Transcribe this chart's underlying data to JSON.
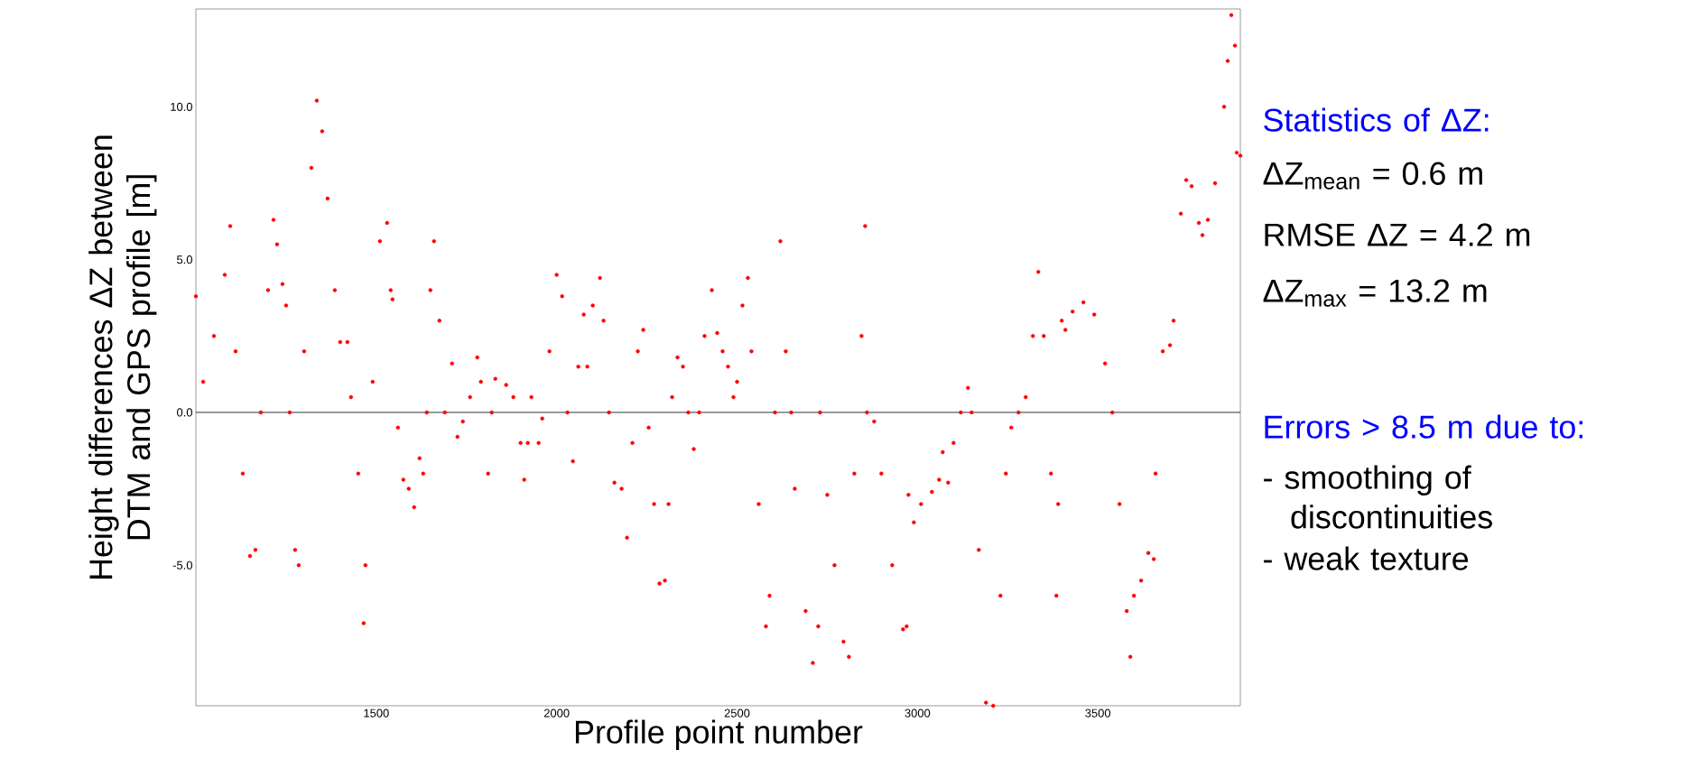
{
  "chart_data": {
    "type": "scatter",
    "xlabel": "Profile point number",
    "ylabel": "Height differences ΔZ between DTM and GPS profile [m]",
    "color": "#ff0000",
    "xlim": [
      1000,
      3895
    ],
    "ylim": [
      -9.6,
      13.2
    ],
    "xticks": [
      1500,
      2000,
      2500,
      3000,
      3500
    ],
    "yticks": [
      {
        "value": -5,
        "label": "-5.0"
      },
      {
        "value": 0,
        "label": "0.0"
      },
      {
        "value": 5,
        "label": "5.0"
      },
      {
        "value": 10,
        "label": "10.0"
      }
    ],
    "ref_lines": [
      {
        "axis": "y",
        "value": 0,
        "color": "#000000"
      }
    ],
    "annotations": [
      "Statistics of ΔZ:",
      "ΔZ$_{mean}$ = 0.6 m",
      "RMSE ΔZ = 4.2 m",
      "ΔZ$_{max}$ = 13.2 m",
      "Errors > 8.5 m due to:",
      "- smoothing of discontinuities",
      "- weak texture"
    ],
    "x": [
      1000,
      1020,
      1050,
      1080,
      1095,
      1110,
      1130,
      1150,
      1165,
      1180,
      1200,
      1215,
      1225,
      1240,
      1250,
      1260,
      1275,
      1285,
      1300,
      1320,
      1335,
      1350,
      1365,
      1385,
      1400,
      1420,
      1430,
      1450,
      1465,
      1470,
      1490,
      1510,
      1530,
      1540,
      1545,
      1560,
      1575,
      1590,
      1605,
      1620,
      1630,
      1640,
      1650,
      1660,
      1675,
      1690,
      1710,
      1725,
      1740,
      1760,
      1780,
      1790,
      1810,
      1820,
      1830,
      1860,
      1880,
      1900,
      1910,
      1920,
      1930,
      1950,
      1960,
      1980,
      2000,
      2015,
      2030,
      2045,
      2060,
      2075,
      2085,
      2100,
      2120,
      2130,
      2145,
      2160,
      2180,
      2195,
      2210,
      2225,
      2240,
      2255,
      2270,
      2285,
      2300,
      2310,
      2320,
      2335,
      2350,
      2365,
      2380,
      2395,
      2410,
      2430,
      2445,
      2460,
      2475,
      2490,
      2500,
      2515,
      2530,
      2540,
      2560,
      2580,
      2590,
      2605,
      2620,
      2635,
      2650,
      2660,
      2690,
      2710,
      2725,
      2730,
      2750,
      2770,
      2795,
      2810,
      2825,
      2845,
      2855,
      2860,
      2880,
      2900,
      2930,
      2960,
      2970,
      2975,
      2990,
      3010,
      3040,
      3060,
      3070,
      3085,
      3100,
      3120,
      3140,
      3150,
      3170,
      3190,
      3210,
      3230,
      3245,
      3260,
      3280,
      3300,
      3320,
      3335,
      3350,
      3370,
      3385,
      3390,
      3400,
      3410,
      3430,
      3460,
      3490,
      3520,
      3540,
      3560,
      3580,
      3590,
      3600,
      3620,
      3640,
      3655,
      3660,
      3680,
      3700,
      3710,
      3730,
      3745,
      3760,
      3780,
      3790,
      3805,
      3825,
      3850,
      3860,
      3870,
      3880,
      3885,
      3895
    ],
    "values": [
      3.8,
      1.0,
      2.5,
      4.5,
      6.1,
      2,
      -2,
      -4.7,
      -4.5,
      0,
      4,
      6.3,
      5.5,
      4.2,
      3.5,
      0,
      -4.5,
      -5.0,
      2,
      8,
      10.2,
      9.2,
      7,
      4,
      2.3,
      2.3,
      0.5,
      -2,
      -6.9,
      -5,
      1,
      5.6,
      6.2,
      4,
      3.7,
      -0.5,
      -2.2,
      -2.5,
      -3.1,
      -1.5,
      -2,
      0,
      4,
      5.6,
      3,
      0,
      1.6,
      -0.8,
      -0.3,
      0.5,
      1.8,
      1,
      -2,
      0,
      1.1,
      0.9,
      0.5,
      -1,
      -2.2,
      -1,
      0.5,
      -1,
      -0.2,
      2,
      4.5,
      3.8,
      0,
      -1.6,
      1.5,
      3.2,
      1.5,
      3.5,
      4.4,
      3,
      0,
      -2.3,
      -2.5,
      -4.1,
      -1,
      2,
      2.7,
      -0.5,
      -3,
      -5.6,
      -5.5,
      -3,
      0.5,
      1.8,
      1.5,
      0,
      -1.2,
      0,
      2.5,
      4,
      2.6,
      2,
      1.5,
      0.5,
      1,
      3.5,
      4.4,
      2,
      -3,
      -7,
      -6,
      0,
      5.6,
      2,
      0,
      -2.5,
      -6.5,
      -8.2,
      -7,
      0,
      -2.7,
      -5,
      -7.5,
      -8,
      -2,
      2.5,
      6.1,
      0,
      -0.3,
      -2,
      -5,
      -7.1,
      -7,
      -2.7,
      -3.6,
      -3,
      -2.6,
      -2.2,
      -1.3,
      -2.3,
      -1,
      0,
      0.8,
      0,
      -4.5,
      -9.5,
      -9.6,
      -6,
      -2,
      -0.5,
      0,
      0.5,
      2.5,
      4.6,
      2.5,
      -2,
      -6,
      -3,
      3,
      2.7,
      3.3,
      3.6,
      3.2,
      1.6,
      0,
      -3,
      -6.5,
      -8,
      -6,
      -5.5,
      -4.6,
      -4.8,
      -2,
      2,
      2.2,
      3,
      6.5,
      7.6,
      7.4,
      6.2,
      5.8,
      6.3,
      7.5,
      10,
      11.5,
      13,
      12,
      8.5,
      8.4
    ]
  }
}
